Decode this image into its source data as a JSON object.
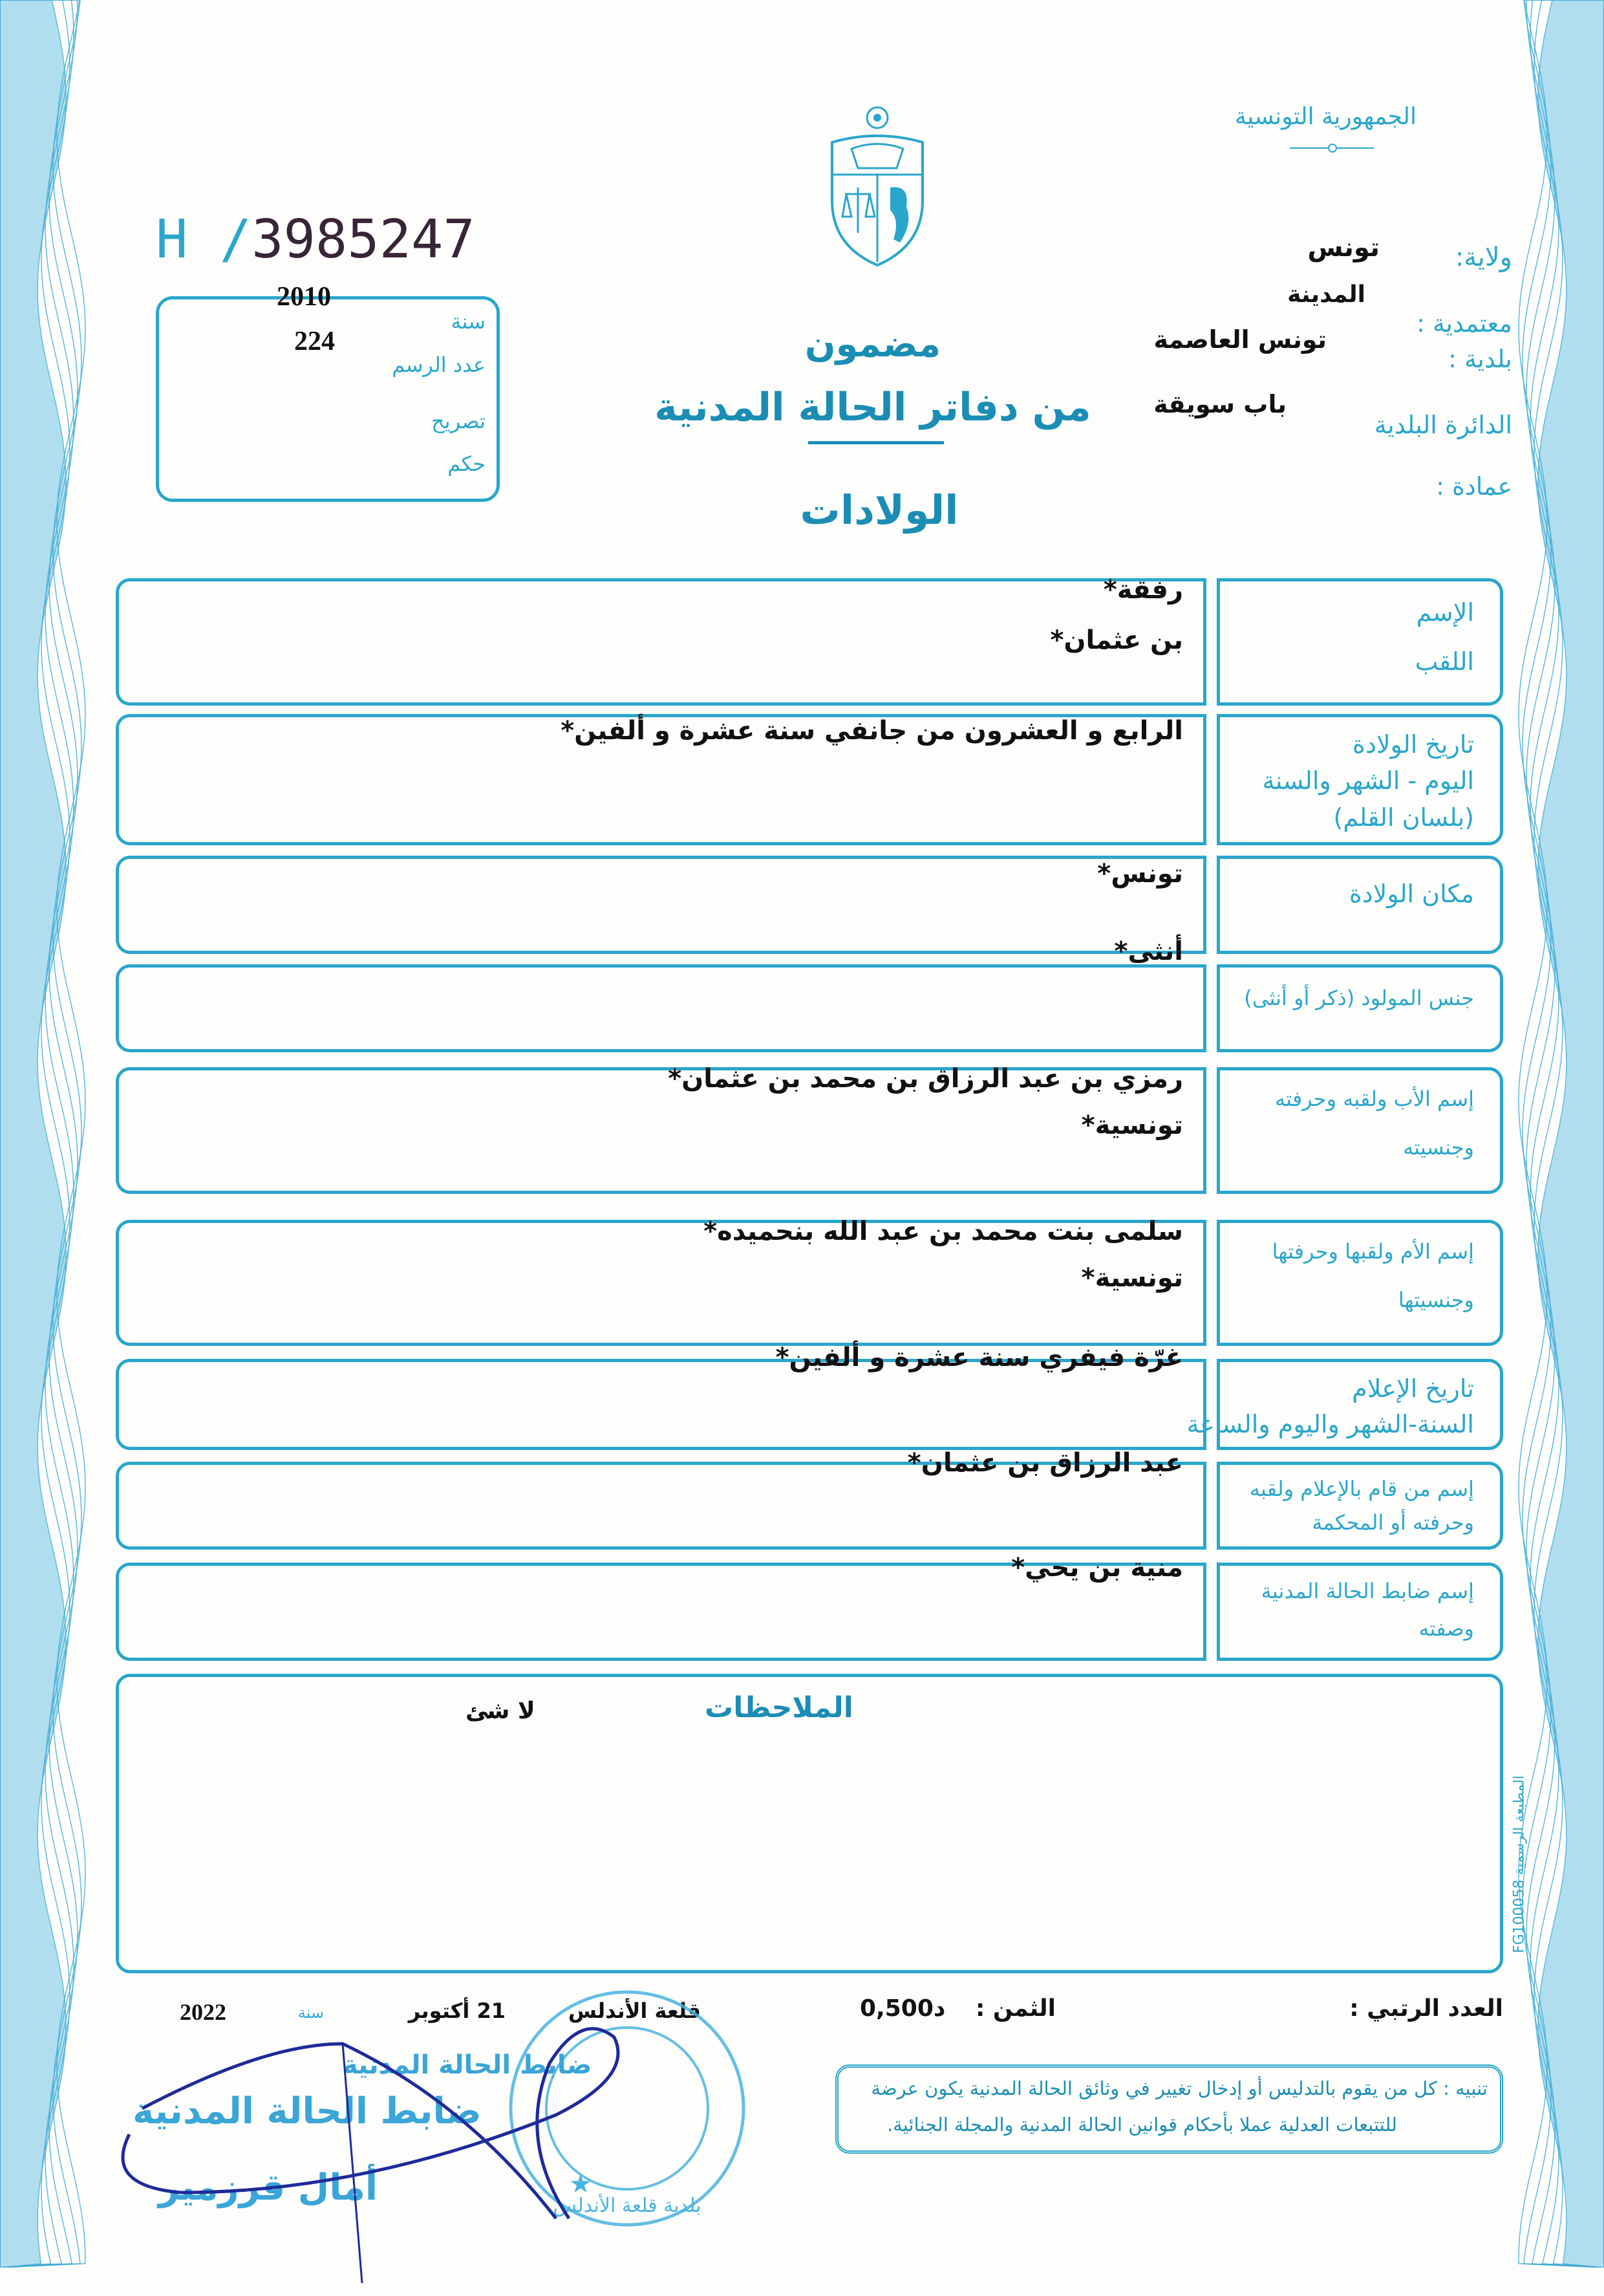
{
  "header": {
    "republic": "الجمهورية التونسية",
    "serial_prefix": "H /",
    "serial_number": "3985247"
  },
  "register_box": {
    "year_label": "سنة",
    "year_value": "2010",
    "record_number_label": "عدد الرسم",
    "record_number_value": "224",
    "declaration_label": "تصريح",
    "judgment_label": "حكم"
  },
  "title": {
    "line1": "مضمون",
    "line2": "من دفاتر الحالة المدنية",
    "line3": "الولادات"
  },
  "location": {
    "governorate_label": "ولاية:",
    "governorate_value": "تونس",
    "delegation_label": "معتمدية :",
    "delegation_value": "المدينة",
    "municipality_label": "بلدية :",
    "municipality_value": "تونس العاصمة",
    "district_label": "الدائرة البلدية",
    "district_value": "باب سويقة",
    "sector_label": "عمادة :"
  },
  "fields": [
    {
      "labels": [
        "الإسم",
        "اللقب"
      ],
      "values": [
        "رفقة*",
        "بن عثمان*"
      ]
    },
    {
      "labels": [
        "تاريخ الولادة",
        "اليوم - الشهر والسنة",
        "(بلسان القلم)"
      ],
      "values": [
        "الرابع و العشرون من جانفي سنة عشرة و ألفين*"
      ]
    },
    {
      "labels": [
        "مكان الولادة"
      ],
      "values": [
        "تونس*",
        "أنثى*"
      ]
    },
    {
      "labels": [
        "جنس المولود (ذكر أو أنثى)"
      ],
      "values": []
    },
    {
      "labels": [
        "إسم الأب ولقبه وحرفته",
        "وجنسيته"
      ],
      "values": [
        "رمزي بن عبد الرزاق بن محمد بن عثمان*",
        "تونسية*"
      ]
    },
    {
      "labels": [
        "إسم الأم ولقبها وحرفتها",
        "وجنسيتها"
      ],
      "values": [
        "سلمى بنت محمد بن عبد الله بنحميده*",
        "تونسية*"
      ]
    },
    {
      "labels": [
        "تاريخ الإعلام",
        "السنة-الشهر واليوم والساعة"
      ],
      "values": [
        "غرّة فيفري سنة عشرة و ألفين*"
      ]
    },
    {
      "labels": [
        "إسم من قام بالإعلام ولقبه",
        "وحرفته أو المحكمة"
      ],
      "values": [
        "عبد الرزاق بن عثمان*"
      ]
    },
    {
      "labels": [
        "إسم ضابط الحالة المدنية",
        "وصفته"
      ],
      "values": [
        "منية بن يحي*"
      ]
    }
  ],
  "remarks": {
    "label": "الملاحظات",
    "value": "لا شئ"
  },
  "printer_mark": "المطبعة الرسمية FG100058",
  "footer": {
    "serial_label": "العدد الرتبي :",
    "price_label": "الثمن :",
    "price_value": "0,500د",
    "place": "قلعة الأندلس",
    "date_day_month": "21 أكتوبر",
    "year_label": "سنة",
    "year_value": "2022",
    "notice_line1": "تنبيه : كل من يقوم بالتدليس أو إدخال تغيير في وثائق الحالة المدنية يكون عرضة",
    "notice_line2": "للتتبعات العدلية عملا بأحكام قوانين الحالة المدنية والمجلة الجنائية."
  },
  "stamp": {
    "officer_title_small": "ضابط الحالة المدنية",
    "officer_title_large": "ضابط الحالة المدنية",
    "officer_name": "أمال قرزمير",
    "seal_text": "بلدية قلعة الأندلس"
  },
  "colors": {
    "form_ink": "#2aa6cc",
    "title_ink": "#1b8db5",
    "filled_text": "#111111",
    "signature_ink": "#1e2a9a"
  }
}
